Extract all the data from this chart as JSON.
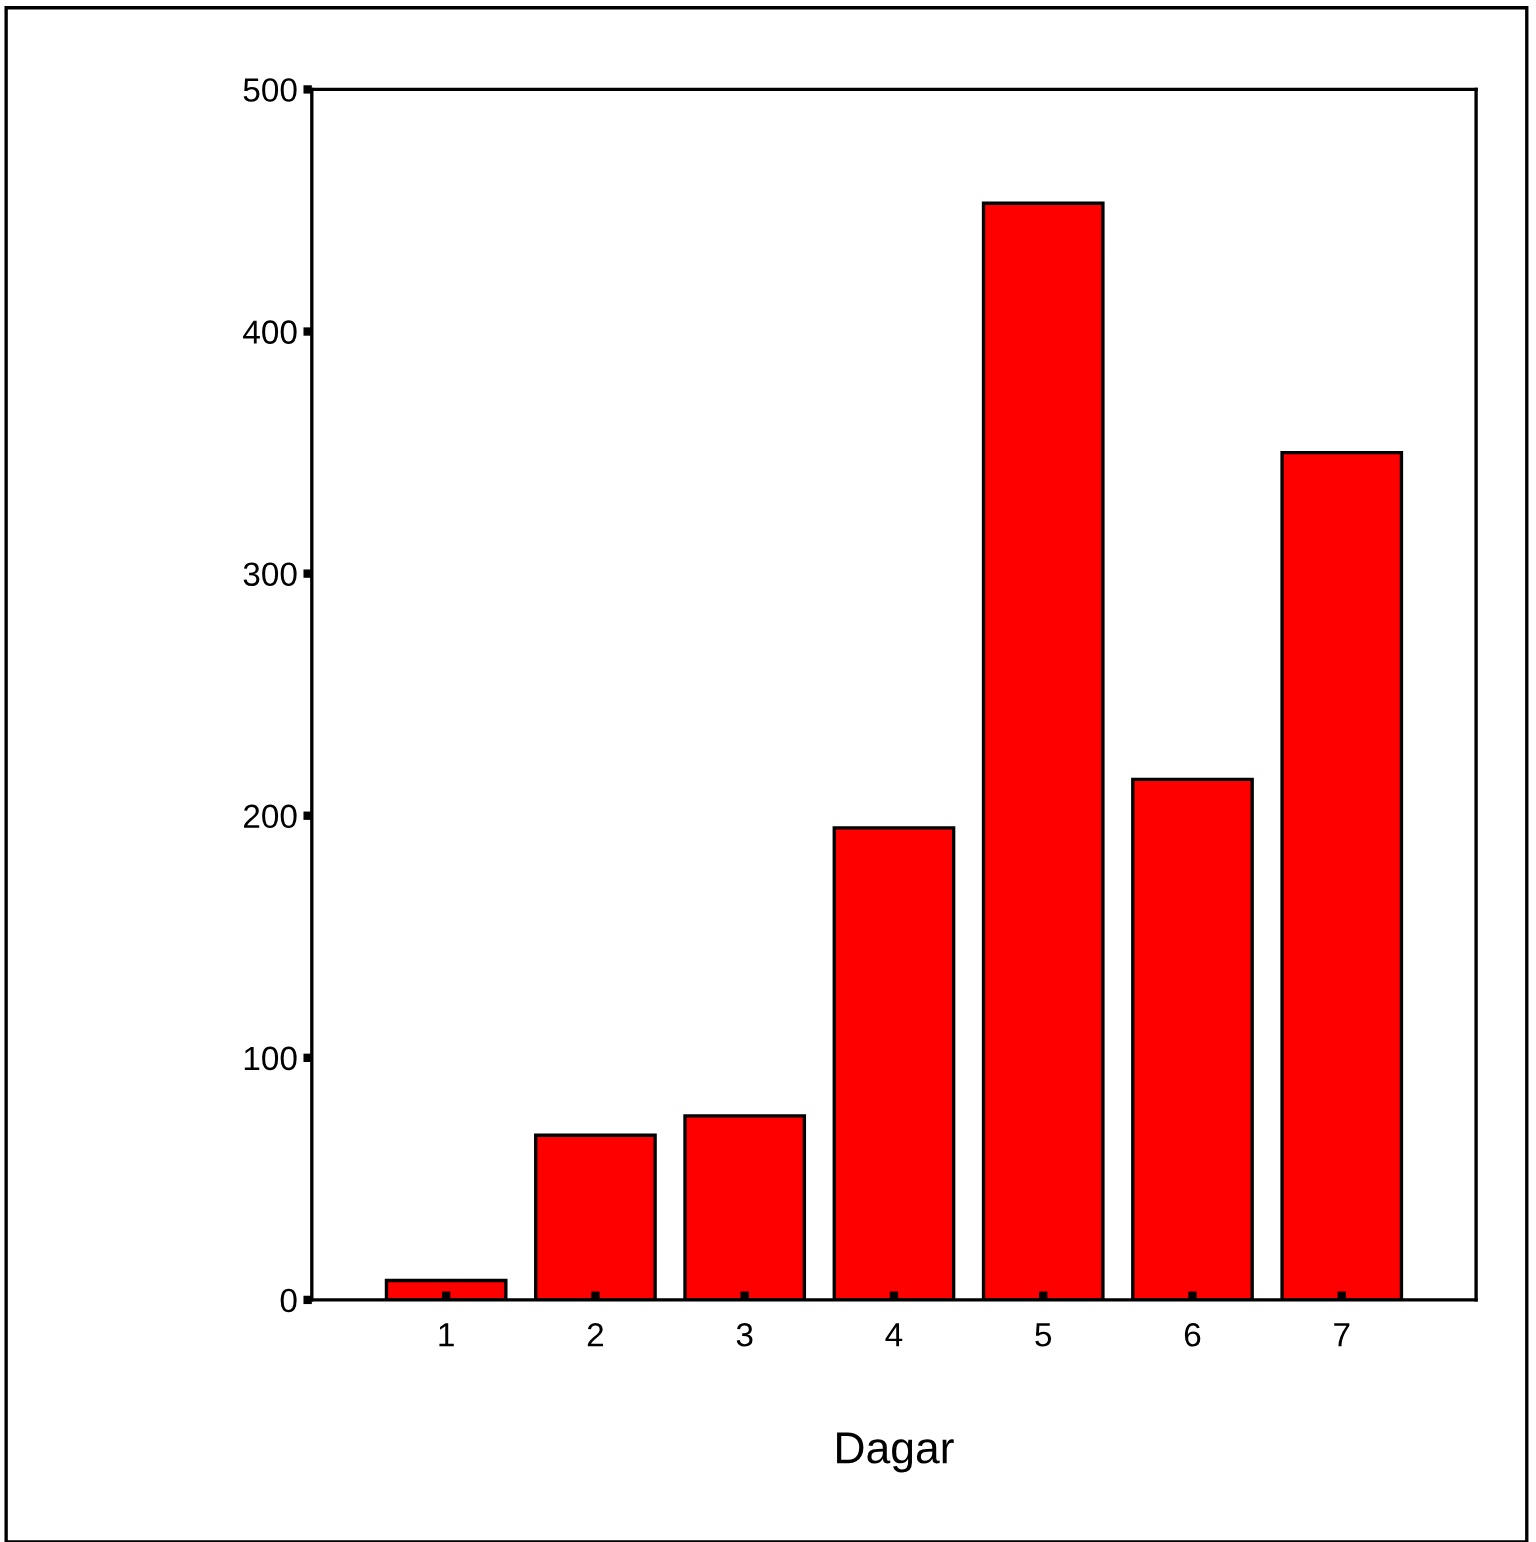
{
  "chart_data": {
    "type": "bar",
    "xlabel": "Dagar",
    "categories": [
      "1",
      "2",
      "3",
      "4",
      "5",
      "6",
      "7"
    ],
    "values": [
      8,
      68,
      76,
      195,
      453,
      215,
      350
    ],
    "color": "#ff0000",
    "ylim": [
      0,
      500
    ],
    "yticks": [
      0,
      100,
      200,
      300,
      400,
      500
    ],
    "grid": false,
    "legend": false
  }
}
